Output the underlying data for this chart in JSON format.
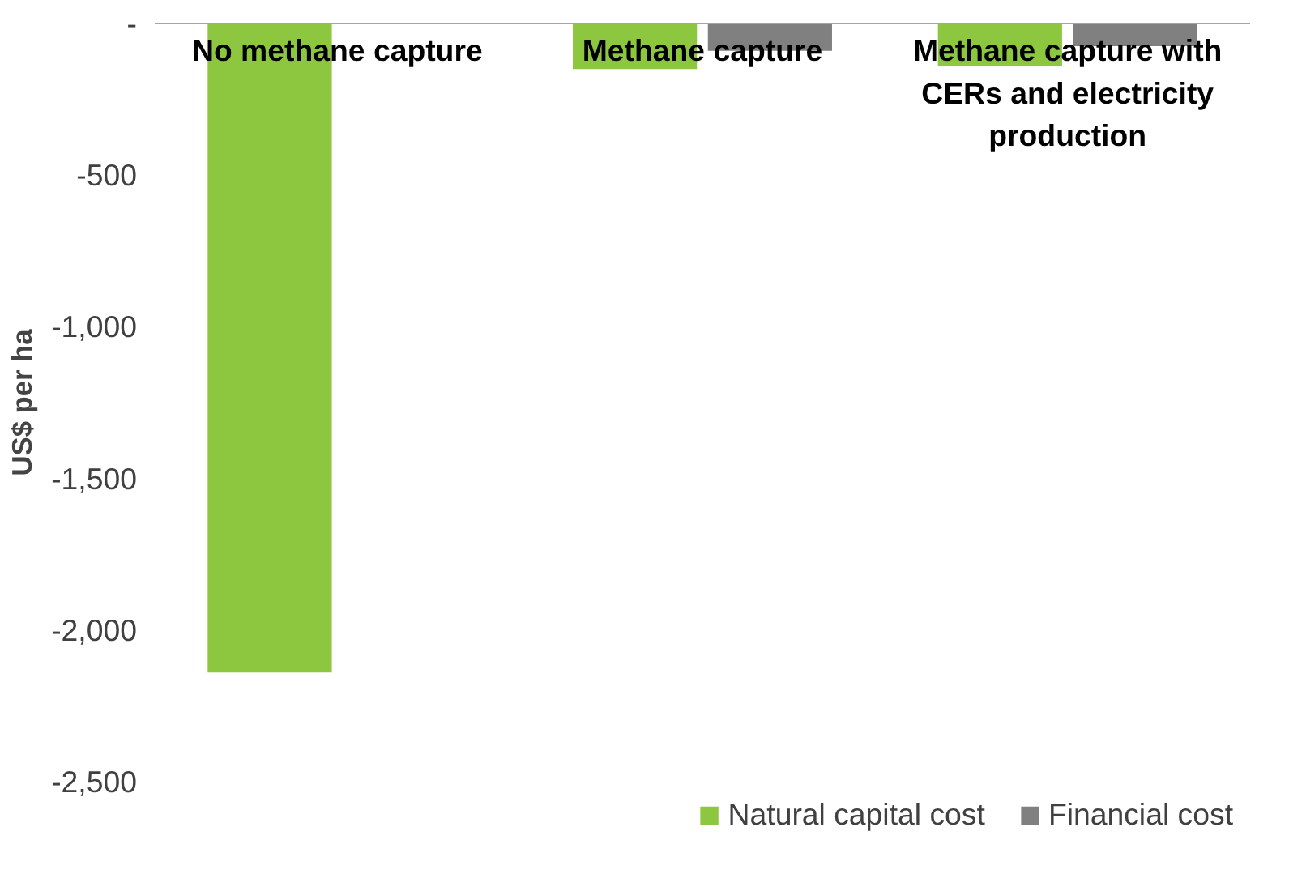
{
  "chart_data": {
    "type": "bar",
    "ylabel": "US$ per ha",
    "categories": [
      "No methane capture",
      "Methane capture",
      "Methane capture with CERs and electricity production"
    ],
    "series": [
      {
        "name": "Natural capital cost",
        "color": "#8dc63f",
        "values": [
          -2140,
          -150,
          -140
        ]
      },
      {
        "name": "Financial cost",
        "color": "#808080",
        "values": [
          null,
          -90,
          -75
        ]
      }
    ],
    "ylim": [
      -2500,
      0
    ],
    "yticks": [
      {
        "value": 0,
        "label": "-"
      },
      {
        "value": -500,
        "label": "-500"
      },
      {
        "value": -1000,
        "label": "-1,000"
      },
      {
        "value": -1500,
        "label": "-1,500"
      },
      {
        "value": -2000,
        "label": "-2,000"
      },
      {
        "value": -2500,
        "label": "-2,500"
      }
    ],
    "grid": false,
    "legend": "bottom"
  }
}
